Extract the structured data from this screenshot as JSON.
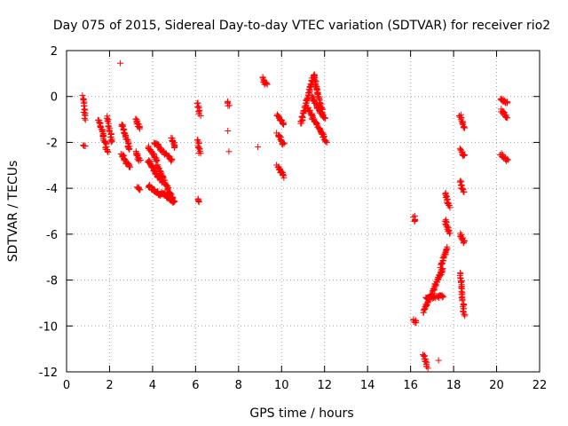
{
  "chart_data": {
    "type": "scatter",
    "title": "Day 075 of 2015, Sidereal Day-to-day VTEC variation (SDTVAR) for receiver rio2",
    "xlabel": "GPS time / hours",
    "ylabel": "SDTVAR / TECUs",
    "xlim": [
      0,
      22
    ],
    "ylim": [
      -12,
      2
    ],
    "xticks": [
      0,
      2,
      4,
      6,
      8,
      10,
      12,
      14,
      16,
      18,
      20,
      22
    ],
    "yticks": [
      -12,
      -10,
      -8,
      -6,
      -4,
      -2,
      0,
      2
    ],
    "grid": true,
    "marker": "+",
    "color": "#ff0000",
    "segments": [
      {
        "x0": 0.78,
        "x1": 0.85,
        "y0": 0.0,
        "y1": -1.0
      },
      {
        "x0": 0.8,
        "x1": 0.85,
        "y0": -2.1,
        "y1": -2.2
      },
      {
        "x0": 1.5,
        "x1": 1.9,
        "y0": -1.0,
        "y1": -2.4
      },
      {
        "x0": 1.9,
        "x1": 2.1,
        "y0": -0.9,
        "y1": -2.0
      },
      {
        "x0": 2.55,
        "x1": 2.95,
        "y0": -1.2,
        "y1": -2.3
      },
      {
        "x0": 2.55,
        "x1": 2.95,
        "y0": -2.5,
        "y1": -3.1
      },
      {
        "x0": 3.2,
        "x1": 3.4,
        "y0": -1.0,
        "y1": -1.4
      },
      {
        "x0": 3.2,
        "x1": 3.4,
        "y0": -2.4,
        "y1": -2.8
      },
      {
        "x0": 3.3,
        "x1": 3.4,
        "y0": -3.9,
        "y1": -4.1
      },
      {
        "x0": 3.8,
        "x1": 4.2,
        "y0": -2.2,
        "y1": -2.8
      },
      {
        "x0": 4.1,
        "x1": 4.9,
        "y0": -2.0,
        "y1": -2.8
      },
      {
        "x0": 3.8,
        "x1": 4.4,
        "y0": -2.8,
        "y1": -3.7
      },
      {
        "x0": 4.2,
        "x1": 5.0,
        "y0": -3.0,
        "y1": -4.6
      },
      {
        "x0": 3.8,
        "x1": 4.4,
        "y0": -3.9,
        "y1": -4.3
      },
      {
        "x0": 4.4,
        "x1": 5.0,
        "y0": -4.2,
        "y1": -4.6
      },
      {
        "x0": 4.9,
        "x1": 5.05,
        "y0": -1.8,
        "y1": -2.2
      },
      {
        "x0": 6.1,
        "x1": 6.2,
        "y0": -0.3,
        "y1": -0.8
      },
      {
        "x0": 6.1,
        "x1": 6.2,
        "y0": -1.9,
        "y1": -2.5
      },
      {
        "x0": 6.1,
        "x1": 6.2,
        "y0": -4.5,
        "y1": -4.6
      },
      {
        "x0": 7.5,
        "x1": 7.55,
        "y0": -0.2,
        "y1": -0.4
      },
      {
        "x0": 9.1,
        "x1": 9.3,
        "y0": 0.8,
        "y1": 0.5
      },
      {
        "x0": 9.8,
        "x1": 10.1,
        "y0": -0.8,
        "y1": -1.2
      },
      {
        "x0": 9.8,
        "x1": 10.1,
        "y0": -1.6,
        "y1": -2.1
      },
      {
        "x0": 9.8,
        "x1": 10.1,
        "y0": -3.0,
        "y1": -3.5
      },
      {
        "x0": 10.9,
        "x1": 11.5,
        "y0": -1.2,
        "y1": 1.0
      },
      {
        "x0": 11.5,
        "x1": 11.9,
        "y0": 0.9,
        "y1": -0.7
      },
      {
        "x0": 11.2,
        "x1": 12.1,
        "y0": -0.5,
        "y1": -2.0
      },
      {
        "x0": 11.4,
        "x1": 12.0,
        "y0": 0.0,
        "y1": -1.0
      },
      {
        "x0": 16.15,
        "x1": 16.25,
        "y0": -9.7,
        "y1": -9.9
      },
      {
        "x0": 16.15,
        "x1": 16.2,
        "y0": -5.2,
        "y1": -5.5
      },
      {
        "x0": 16.6,
        "x1": 16.8,
        "y0": -11.2,
        "y1": -11.8
      },
      {
        "x0": 16.6,
        "x1": 17.5,
        "y0": -9.4,
        "y1": -7.5
      },
      {
        "x0": 17.4,
        "x1": 17.7,
        "y0": -7.4,
        "y1": -6.6
      },
      {
        "x0": 16.7,
        "x1": 17.5,
        "y0": -8.8,
        "y1": -8.7
      },
      {
        "x0": 17.6,
        "x1": 17.8,
        "y0": -4.2,
        "y1": -4.8
      },
      {
        "x0": 17.6,
        "x1": 17.8,
        "y0": -5.4,
        "y1": -6.0
      },
      {
        "x0": 18.3,
        "x1": 18.5,
        "y0": -0.8,
        "y1": -1.4
      },
      {
        "x0": 18.3,
        "x1": 18.5,
        "y0": -2.3,
        "y1": -2.6
      },
      {
        "x0": 18.3,
        "x1": 18.5,
        "y0": -3.7,
        "y1": -4.2
      },
      {
        "x0": 18.3,
        "x1": 18.5,
        "y0": -6.0,
        "y1": -6.4
      },
      {
        "x0": 18.3,
        "x1": 18.5,
        "y0": -7.7,
        "y1": -9.6
      },
      {
        "x0": 20.2,
        "x1": 20.5,
        "y0": -0.1,
        "y1": -0.3
      },
      {
        "x0": 20.2,
        "x1": 20.5,
        "y0": -0.6,
        "y1": -0.9
      },
      {
        "x0": 20.2,
        "x1": 20.5,
        "y0": -2.5,
        "y1": -2.8
      }
    ],
    "isolated_points": [
      {
        "x": 2.5,
        "y": 1.45
      },
      {
        "x": 7.5,
        "y": -1.5
      },
      {
        "x": 7.55,
        "y": -2.4
      },
      {
        "x": 8.9,
        "y": -2.2
      },
      {
        "x": 17.3,
        "y": -11.5
      }
    ]
  }
}
